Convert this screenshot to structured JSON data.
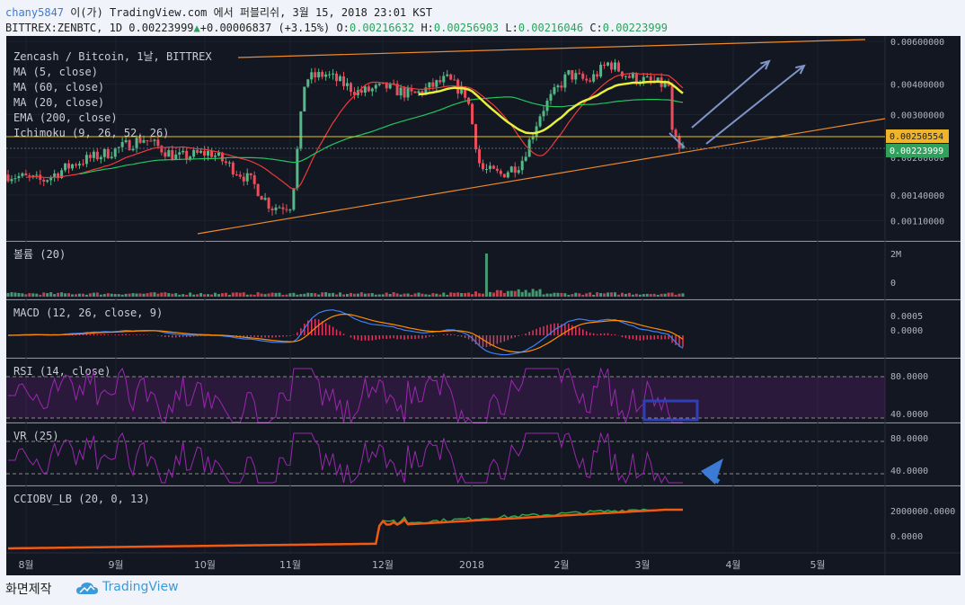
{
  "header": {
    "user": "chany5847",
    "published_text": "이(가) TradingView.com 에서 퍼블리쉬, 3월 15, 2018 23:01 KST",
    "symbol": "BITTREX:ZENBTC, 1D",
    "last": "0.00223999",
    "change_arrow": "▲",
    "change": "+0.00006837 (+3.15%)",
    "o_label": "O:",
    "o_value": "0.00216632",
    "h_label": "H:",
    "h_value": "0.00256903",
    "l_label": "L:",
    "l_value": "0.00216046",
    "c_label": "C:",
    "c_value": "0.00223999"
  },
  "footer": {
    "made_with": "화면제작",
    "brand": "TradingView"
  },
  "colors": {
    "background": "#131722",
    "panel_border": "#2a2e39",
    "grid": "#1e222d",
    "axis_text": "#b2b5be",
    "bull": "#53b987",
    "bear": "#eb4d5c",
    "ma5": "#ff6d6d",
    "ma60": "#e8ef3c",
    "ma20": "#ef3a3a",
    "ema200": "#22c55e",
    "trendline": "#ef8a2a",
    "arrow": "#7f95c9",
    "macd": "#3b82f6",
    "signal": "#ff8c00",
    "hist": "#e3375f",
    "rsi": "#9c27b0",
    "highlight": "#2f3fb6",
    "hline_price": "#e3c21e",
    "obv_orange": "#f05a12",
    "obv_green": "#2aa84a"
  },
  "chart_data": {
    "type": "candlestick",
    "symbol": "Zencash / Bitcoin, 1날, BITTREX",
    "x_tick_labels": [
      "8월",
      "9월",
      "10월",
      "11월",
      "12월",
      "2018",
      "2월",
      "3월",
      "4월",
      "5월"
    ],
    "price_axis_ticks": [
      "0.00600000",
      "0.00400000",
      "0.00300000",
      "0.00200000",
      "0.00140000",
      "0.00110000"
    ],
    "price_axis_values": [
      0.006,
      0.004,
      0.003,
      0.002,
      0.0014,
      0.0011
    ],
    "price_axis_scale": "log",
    "current_price_tags": [
      "0.00250554",
      "0.00223999"
    ],
    "current_price_values": [
      0.00250554,
      0.00223999
    ],
    "indicators_main": [
      "MA (5, close)",
      "MA (60, close)",
      "MA (20, close)",
      "EMA (200, close)",
      "Ichimoku (9, 26, 52, 26)"
    ],
    "monthly_close_approx": [
      {
        "month": "8월",
        "close": 0.0018
      },
      {
        "month": "9월",
        "close": 0.0024
      },
      {
        "month": "10월",
        "close": 0.0012
      },
      {
        "month": "11월",
        "close": 0.004
      },
      {
        "month": "12월",
        "close": 0.0018
      },
      {
        "month": "2018",
        "close": 0.0042
      },
      {
        "month": "2월",
        "close": 0.0046
      },
      {
        "month": "3월",
        "close": 0.0038
      }
    ],
    "panels": [
      {
        "name": "볼륨 (20)",
        "ticks": [
          "2M",
          "0"
        ]
      },
      {
        "name": "MACD (12, 26, close, 9)",
        "ticks": [
          "0.0005",
          "0.0000"
        ]
      },
      {
        "name": "RSI (14, close)",
        "ticks": [
          "80.0000",
          "40.0000"
        ]
      },
      {
        "name": "VR (25)",
        "ticks": [
          "80.0000",
          "40.0000"
        ]
      },
      {
        "name": "CCIOBV_LB (20, 0, 13)",
        "ticks": [
          "2000000.0000",
          "0.0000"
        ]
      }
    ]
  }
}
